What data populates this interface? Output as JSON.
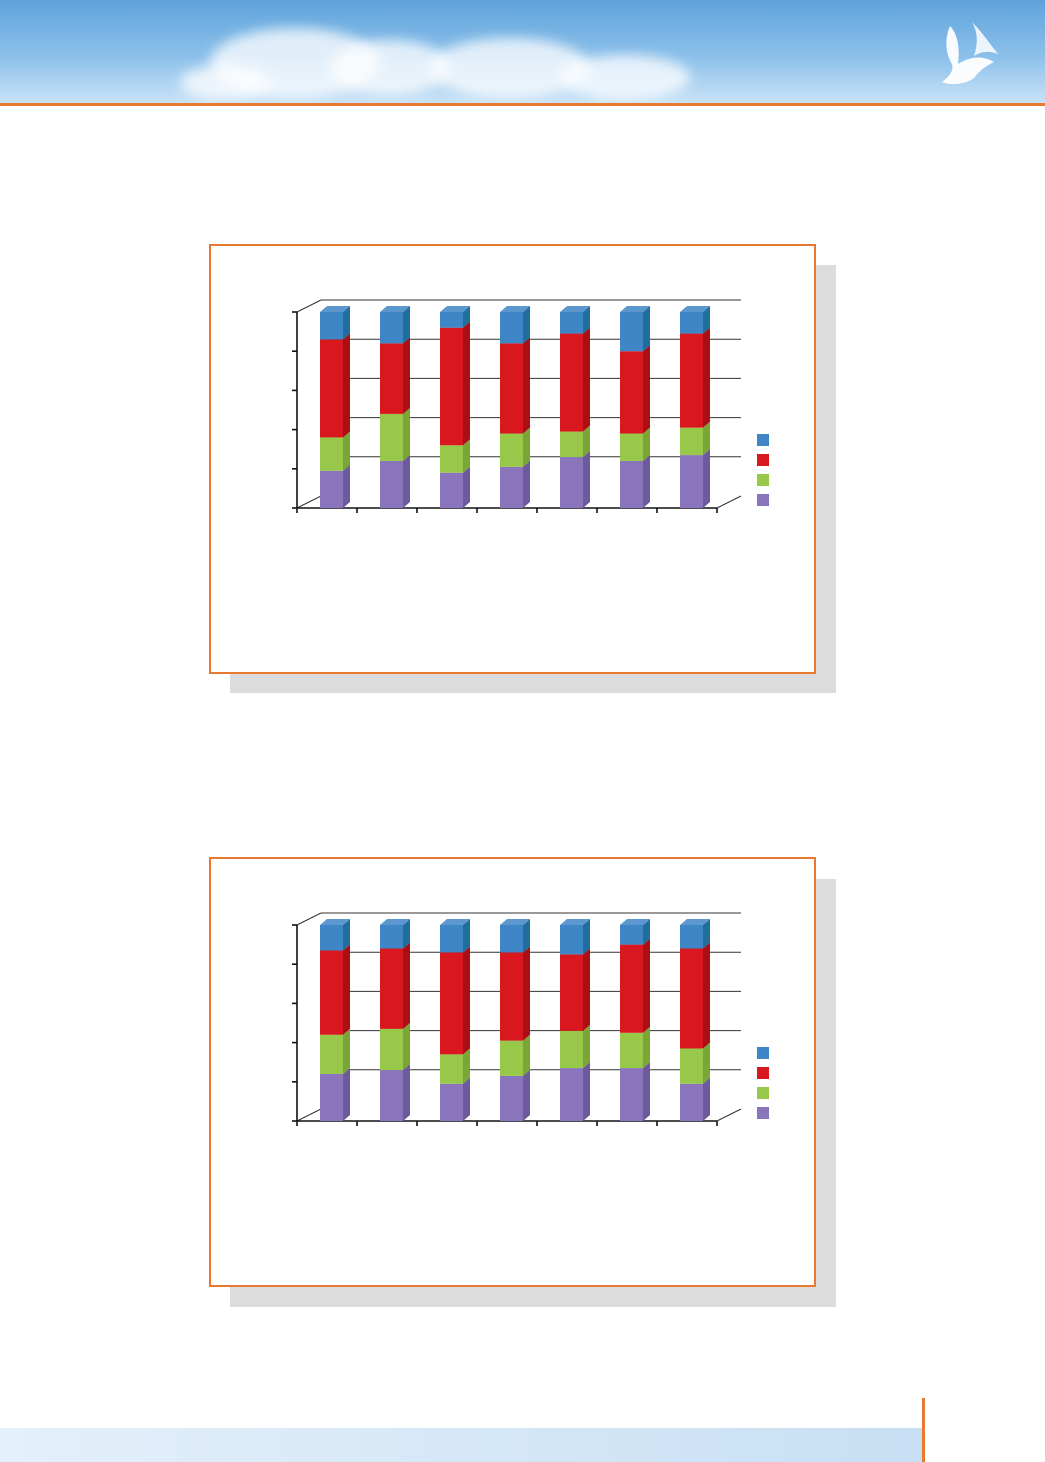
{
  "colors": {
    "accent_orange": "#e8792f",
    "series": [
      "#8a74bb",
      "#98c84a",
      "#d8181e",
      "#3f86c6"
    ],
    "series_side": [
      "#6d5a9c",
      "#7aa636",
      "#ab0f14",
      "#1f6e9e"
    ]
  },
  "header": {
    "logo_icon": "bird-logo-icon"
  },
  "chart_data": [
    {
      "type": "bar",
      "stacked": true,
      "three_d": true,
      "categories": [
        "",
        "",
        "",
        "",
        "",
        "",
        ""
      ],
      "series": [
        {
          "values": [
            19,
            24,
            18,
            21,
            26,
            24,
            27
          ]
        },
        {
          "values": [
            17,
            24,
            14,
            17,
            13,
            14,
            14
          ]
        },
        {
          "values": [
            50,
            36,
            60,
            46,
            50,
            42,
            48
          ]
        },
        {
          "values": [
            14,
            16,
            8,
            16,
            11,
            20,
            11
          ]
        }
      ],
      "ylim": [
        0,
        100
      ],
      "y_ticks": 5,
      "grid": true,
      "legend": "right"
    },
    {
      "type": "bar",
      "stacked": true,
      "three_d": true,
      "categories": [
        "",
        "",
        "",
        "",
        "",
        "",
        ""
      ],
      "series": [
        {
          "values": [
            24,
            26,
            19,
            23,
            27,
            27,
            19
          ]
        },
        {
          "values": [
            20,
            21,
            15,
            18,
            19,
            18,
            18
          ]
        },
        {
          "values": [
            43,
            41,
            52,
            45,
            39,
            45,
            51
          ]
        },
        {
          "values": [
            13,
            12,
            14,
            14,
            15,
            10,
            12
          ]
        }
      ],
      "ylim": [
        0,
        100
      ],
      "y_ticks": 5,
      "grid": true,
      "legend": "right"
    }
  ]
}
